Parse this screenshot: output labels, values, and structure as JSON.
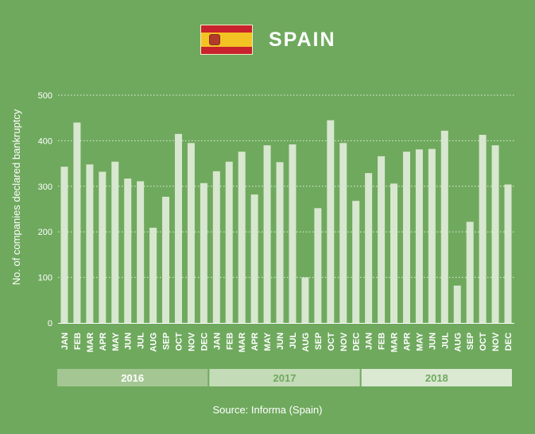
{
  "header": {
    "country": "SPAIN",
    "flag_icon": "spain-flag-icon"
  },
  "source": "Source: Informa (Spain)",
  "colors": {
    "background": "#6fa95e",
    "bar": "#d8e7cf",
    "gridline": "#e6f0df",
    "year_band_1": "#a3c693",
    "year_band_2": "#c4dbb7",
    "year_band_3": "#dbe9d3",
    "year_text_1": "#ffffff",
    "year_text_2": "#6fa95e",
    "year_text_3": "#6fa95e"
  },
  "chart_data": {
    "type": "bar",
    "title": "SPAIN",
    "xlabel": "",
    "ylabel": "No. of companies declared bankruptcy",
    "ylim": [
      0,
      500
    ],
    "yticks": [
      0,
      100,
      200,
      300,
      400,
      500
    ],
    "grid": true,
    "categories": [
      "JAN",
      "FEB",
      "MAR",
      "APR",
      "MAY",
      "JUN",
      "JUL",
      "AUG",
      "SEP",
      "OCT",
      "NOV",
      "DEC",
      "JAN",
      "FEB",
      "MAR",
      "APR",
      "MAY",
      "JUN",
      "JUL",
      "AUG",
      "SEP",
      "OCT",
      "NOV",
      "DEC",
      "JAN",
      "FEB",
      "MAR",
      "APR",
      "MAY",
      "JUN",
      "JUL",
      "AUG",
      "SEP",
      "OCT",
      "NOV",
      "DEC"
    ],
    "years": [
      {
        "label": "2016",
        "start": 0,
        "end": 11
      },
      {
        "label": "2017",
        "start": 12,
        "end": 23
      },
      {
        "label": "2018",
        "start": 24,
        "end": 35
      }
    ],
    "values": [
      343,
      440,
      348,
      332,
      354,
      317,
      311,
      209,
      277,
      415,
      395,
      307,
      333,
      354,
      376,
      282,
      390,
      353,
      392,
      100,
      252,
      445,
      395,
      268,
      329,
      366,
      306,
      376,
      381,
      382,
      422,
      82,
      222,
      413,
      390,
      304
    ]
  }
}
